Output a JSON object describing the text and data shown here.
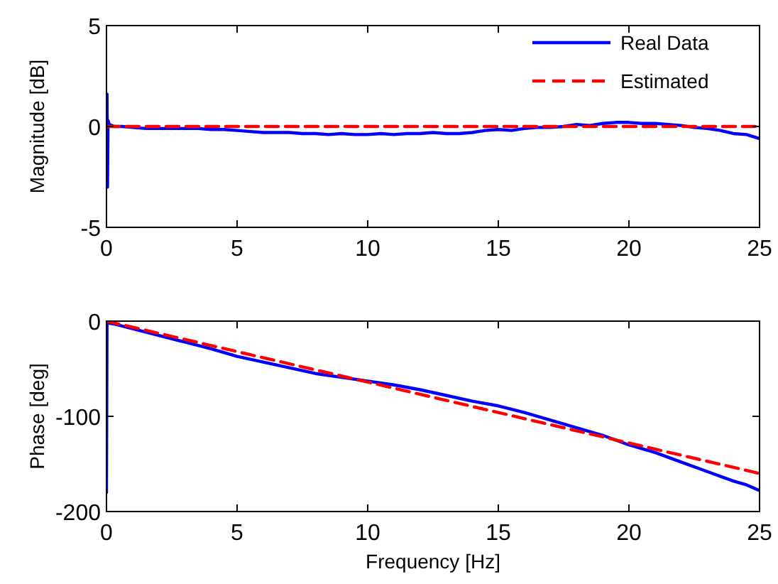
{
  "chart_data": [
    {
      "type": "line",
      "ylabel": "Magnitude [dB]",
      "xlim": [
        0,
        25
      ],
      "xticks": [
        0,
        5,
        10,
        15,
        20,
        25
      ],
      "ylim": [
        -5,
        5
      ],
      "yticks": [
        -5,
        0,
        5
      ],
      "legend": "top right",
      "grid": false,
      "series": [
        {
          "name": "Real Data",
          "color": "#0000ff",
          "line_style": "solid",
          "x": [
            0,
            0.02,
            0.04,
            0.06,
            0.1,
            0.3,
            0.6,
            1,
            1.5,
            2,
            2.5,
            3,
            3.5,
            4,
            4.5,
            5,
            5.5,
            6,
            6.5,
            7,
            7.5,
            8,
            8.5,
            9,
            9.5,
            10,
            10.5,
            11,
            11.5,
            12,
            12.5,
            13,
            13.5,
            14,
            14.5,
            15,
            15.5,
            16,
            16.5,
            17,
            17.5,
            18,
            18.5,
            19,
            19.5,
            20,
            20.5,
            21,
            21.5,
            22,
            22.5,
            23,
            23.5,
            24,
            24.5,
            25
          ],
          "values": [
            0,
            1.6,
            -3,
            0.3,
            0.1,
            0,
            0,
            -0.05,
            -0.1,
            -0.1,
            -0.1,
            -0.1,
            -0.1,
            -0.15,
            -0.15,
            -0.2,
            -0.25,
            -0.3,
            -0.3,
            -0.3,
            -0.35,
            -0.35,
            -0.4,
            -0.35,
            -0.4,
            -0.4,
            -0.35,
            -0.4,
            -0.35,
            -0.35,
            -0.3,
            -0.35,
            -0.35,
            -0.3,
            -0.2,
            -0.15,
            -0.2,
            -0.1,
            -0.05,
            -0.05,
            0,
            0.1,
            0.05,
            0.15,
            0.2,
            0.2,
            0.15,
            0.15,
            0.1,
            0.05,
            -0.05,
            -0.1,
            -0.2,
            -0.35,
            -0.4,
            -0.6
          ]
        },
        {
          "name": "Estimated",
          "color": "#ff0000",
          "line_style": "dashed",
          "x": [
            0,
            25
          ],
          "values": [
            0,
            0
          ]
        }
      ]
    },
    {
      "type": "line",
      "xlabel": "Frequency [Hz]",
      "ylabel": "Phase [deg]",
      "xlim": [
        0,
        25
      ],
      "xticks": [
        0,
        5,
        10,
        15,
        20,
        25
      ],
      "ylim": [
        -200,
        0
      ],
      "yticks": [
        -200,
        -100,
        0
      ],
      "legend": false,
      "grid": false,
      "series": [
        {
          "color": "#0000ff",
          "line_style": "solid",
          "x": [
            0,
            0.02,
            0.05,
            0.3,
            1,
            2,
            3,
            4,
            5,
            6,
            7,
            8,
            9,
            10,
            11,
            12,
            13,
            14,
            15,
            16,
            17,
            18,
            19,
            20,
            21,
            22,
            23,
            24,
            24.5,
            25
          ],
          "values": [
            -180,
            -2,
            -2,
            -3,
            -8,
            -15,
            -22,
            -29,
            -37,
            -43,
            -49,
            -55,
            -59,
            -63,
            -67,
            -72,
            -78,
            -84,
            -89,
            -96,
            -104,
            -112,
            -120,
            -130,
            -138,
            -148,
            -158,
            -168,
            -172,
            -178
          ]
        },
        {
          "color": "#ff0000",
          "line_style": "dashed",
          "x": [
            0,
            25
          ],
          "values": [
            0,
            -160
          ]
        }
      ]
    }
  ]
}
